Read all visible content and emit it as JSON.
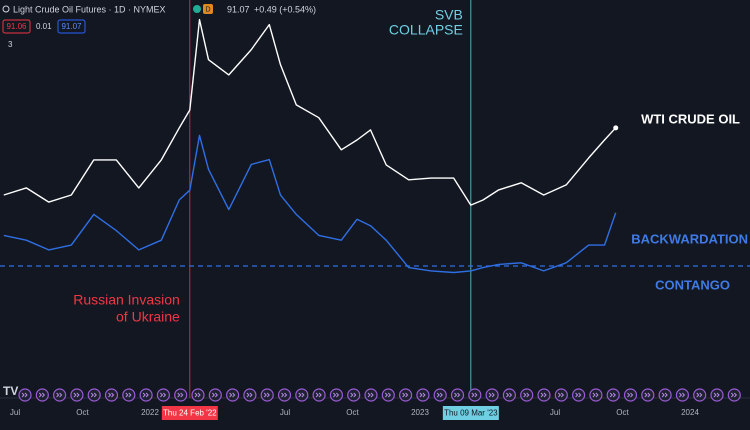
{
  "header": {
    "symbol": "Light Crude Oil Futures · 1D · NYMEX",
    "badge": "D",
    "price": "91.07",
    "change": "+0.49 (+0.54%)",
    "bid": "91.06",
    "spread": "0.01",
    "ask": "91.07",
    "indicators": "3"
  },
  "chart_data": {
    "type": "line",
    "x": [
      5.5,
      6.5,
      7.5,
      8.5,
      9.5,
      10.5,
      11.5,
      12.5,
      13.3,
      13.77,
      14.2,
      14.6,
      15.5,
      16.5,
      17.3,
      17.8,
      18.5,
      19.5,
      20.5,
      21.2,
      21.8,
      22.5,
      23.5,
      24.5,
      25.5,
      26.26,
      26.8,
      27.5,
      28.5,
      29.5,
      30.5,
      31.5,
      32.2,
      32.7
    ],
    "series": [
      {
        "name": "WTI CRUDE OIL",
        "color": "#ffffff",
        "values": [
          71.2,
          73.3,
          69.1,
          71.2,
          81.6,
          81.6,
          73.3,
          81.6,
          91.1,
          96.4,
          123.2,
          111.3,
          106.8,
          114.3,
          121.7,
          109.8,
          97.9,
          94.1,
          84.6,
          87.5,
          90.5,
          80.1,
          75.7,
          76.2,
          76.2,
          68.2,
          69.7,
          72.7,
          74.8,
          71.2,
          74.2,
          82.2,
          87.5,
          91.1
        ]
      },
      {
        "color": "#2f6fe4",
        "axis": "y2",
        "values": [
          1.9,
          1.6,
          1.0,
          1.3,
          3.2,
          2.2,
          1.0,
          1.6,
          4.1,
          4.7,
          8.1,
          6.0,
          3.5,
          6.3,
          6.6,
          4.4,
          3.2,
          1.9,
          1.6,
          2.9,
          2.5,
          1.6,
          -0.1,
          -0.3,
          -0.4,
          -0.3,
          -0.1,
          0.1,
          0.2,
          -0.3,
          0.2,
          1.3,
          1.3,
          3.3
        ]
      }
    ],
    "xlim": [
      5.333,
      38.667
    ],
    "xticks": [
      {
        "value": 6,
        "label": "Jul"
      },
      {
        "value": 9,
        "label": "Oct"
      },
      {
        "value": 12,
        "label": "2022"
      },
      {
        "value": 18,
        "label": "Jul"
      },
      {
        "value": 21,
        "label": "Oct"
      },
      {
        "value": 24,
        "label": "2023"
      },
      {
        "value": 30,
        "label": "Jul"
      },
      {
        "value": 33,
        "label": "Oct"
      },
      {
        "value": 36,
        "label": "2024"
      }
    ],
    "ylim": [
      11.9,
      129.0
    ],
    "y2lim": [
      -8,
      16.5
    ],
    "reference_line": 0,
    "markers": [
      {
        "x": 13.77,
        "date_label": "Thu 24 Feb '22",
        "color": "#f23645",
        "text": [
          "Russian Invasion",
          "of Ukraine"
        ]
      },
      {
        "x": 26.26,
        "date_label": "Thu 09 Mar '23",
        "color": "#6fd0e4",
        "text": [
          "SVB",
          "COLLAPSE"
        ]
      }
    ],
    "zone_labels": [
      "BACKWARDATION",
      "CONTANGO"
    ]
  }
}
